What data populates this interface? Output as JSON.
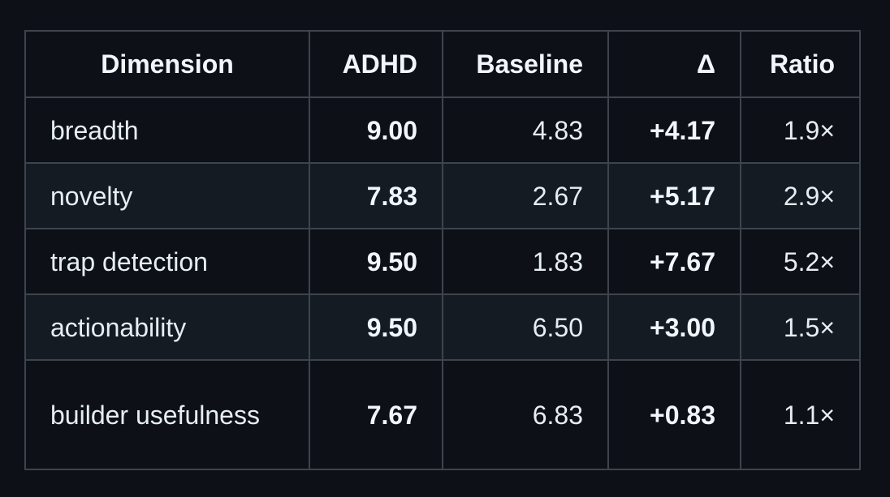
{
  "table": {
    "headers": [
      "Dimension",
      "ADHD",
      "Baseline",
      "Δ",
      "Ratio"
    ],
    "rows": [
      {
        "dimension": "breadth",
        "adhd": "9.00",
        "baseline": "4.83",
        "delta": "+4.17",
        "ratio": "1.9×"
      },
      {
        "dimension": "novelty",
        "adhd": "7.83",
        "baseline": "2.67",
        "delta": "+5.17",
        "ratio": "2.9×"
      },
      {
        "dimension": "trap detection",
        "adhd": "9.50",
        "baseline": "1.83",
        "delta": "+7.67",
        "ratio": "5.2×"
      },
      {
        "dimension": "actionability",
        "adhd": "9.50",
        "baseline": "6.50",
        "delta": "+3.00",
        "ratio": "1.5×"
      },
      {
        "dimension": "builder usefulness",
        "adhd": "7.67",
        "baseline": "6.83",
        "delta": "+0.83",
        "ratio": "1.1×"
      }
    ]
  },
  "colors": {
    "background": "#0d1117",
    "row_alt": "#151b23",
    "border": "#3d444d",
    "text": "#e6edf3"
  }
}
